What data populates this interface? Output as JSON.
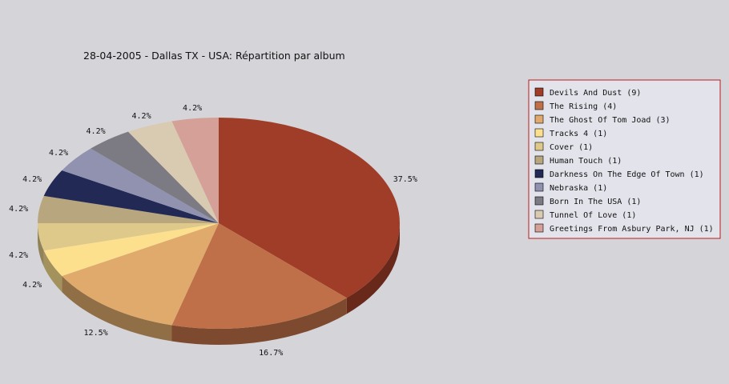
{
  "chart_data": {
    "type": "pie",
    "title": "28-04-2005 - Dallas TX - USA:  Répartition par album",
    "slices": [
      {
        "label": "Devils And Dust",
        "count": 9,
        "legend": "Devils And Dust (9)",
        "percent_label": "37.5%",
        "color": "#a03d28"
      },
      {
        "label": "The Rising",
        "count": 4,
        "legend": "The Rising (4)",
        "percent_label": "16.7%",
        "color": "#c07048"
      },
      {
        "label": "The Ghost Of Tom Joad",
        "count": 3,
        "legend": "The Ghost Of Tom Joad (3)",
        "percent_label": "12.5%",
        "color": "#dfaa6c"
      },
      {
        "label": "Tracks 4",
        "count": 1,
        "legend": "Tracks 4 (1)",
        "percent_label": "4.2%",
        "color": "#fde08e"
      },
      {
        "label": "Cover",
        "count": 1,
        "legend": "Cover (1)",
        "percent_label": "4.2%",
        "color": "#dec98b"
      },
      {
        "label": "Human Touch",
        "count": 1,
        "legend": "Human Touch (1)",
        "percent_label": "4.2%",
        "color": "#b8a67e"
      },
      {
        "label": "Darkness On The Edge Of Town",
        "count": 1,
        "legend": "Darkness On The Edge Of Town (1)",
        "percent_label": "4.2%",
        "color": "#232955"
      },
      {
        "label": "Nebraska",
        "count": 1,
        "legend": "Nebraska (1)",
        "percent_label": "4.2%",
        "color": "#9092b0"
      },
      {
        "label": "Born In The USA",
        "count": 1,
        "legend": "Born In The USA (1)",
        "percent_label": "4.2%",
        "color": "#7c7a82"
      },
      {
        "label": "Tunnel Of Love",
        "count": 1,
        "legend": "Tunnel Of Love (1)",
        "percent_label": "4.2%",
        "color": "#d8cbb2"
      },
      {
        "label": "Greetings From Asbury Park, NJ",
        "count": 1,
        "legend": "Greetings From Asbury Park, NJ (1)",
        "percent_label": "4.2%",
        "color": "#d4a098"
      }
    ],
    "legend_placement": "right",
    "legend_border_color": "#b81c1c",
    "background_color": "#d5d4d9"
  }
}
